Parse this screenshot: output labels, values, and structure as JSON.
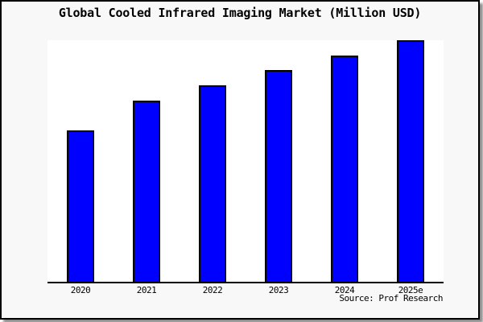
{
  "title": "Global Cooled Infrared Imaging Market (Million USD)",
  "source": "Source: Prof Research",
  "colors": {
    "figure_background": "#f8f8f8",
    "plot_background": "#ffffff",
    "bar_fill": "#0000ff",
    "bar_border": "#000000",
    "axis": "#000000",
    "text": "#000000"
  },
  "chart_data": {
    "type": "bar",
    "title": "Global Cooled Infrared Imaging Market (Million USD)",
    "categories": [
      "2020",
      "2021",
      "2022",
      "2023",
      "2024",
      "2025e"
    ],
    "values": [
      62.7,
      75.0,
      81.3,
      87.7,
      93.7,
      100.0
    ],
    "values_note": "y-axis has no tick labels in the image; values are relative bar heights with tallest bar (2025e) = 100",
    "xlabel": "",
    "ylabel": "",
    "ylim": [
      0,
      100
    ],
    "grid": false,
    "legend": false,
    "bar_color": "#0000ff",
    "annotations": [
      "Source: Prof Research"
    ]
  }
}
